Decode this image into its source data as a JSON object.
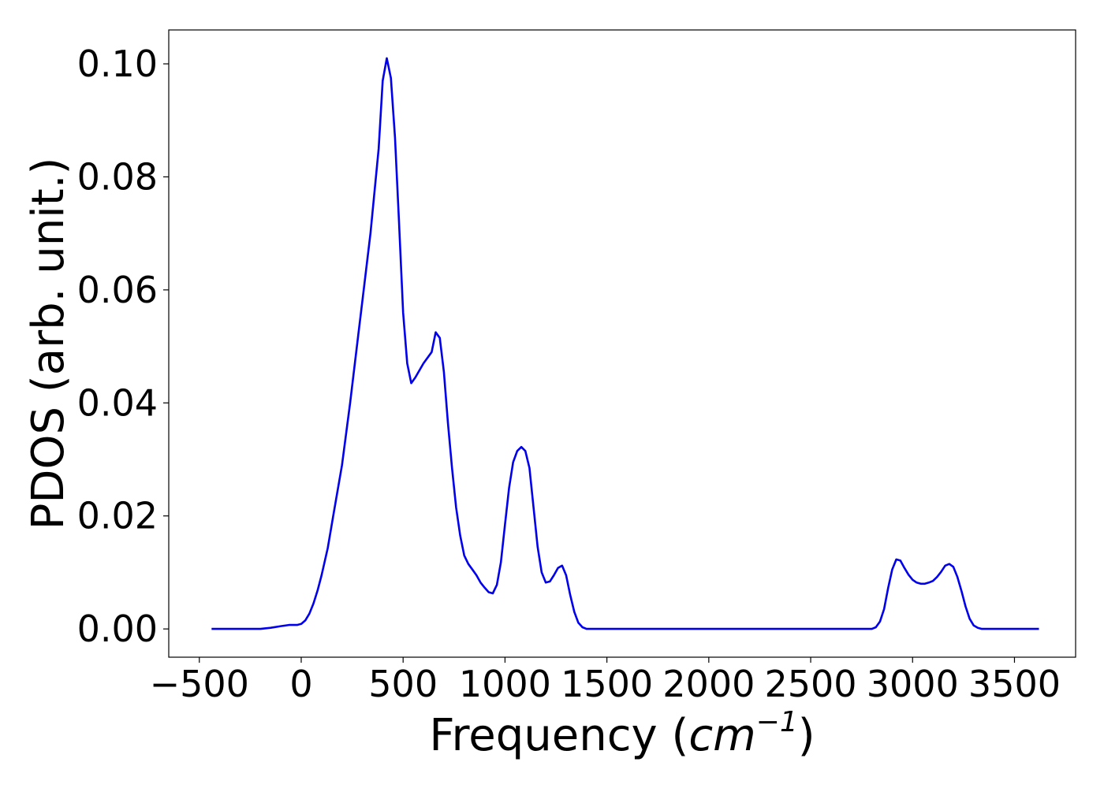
{
  "chart_data": {
    "type": "line",
    "title": "",
    "xlabel": "Frequency (",
    "xlabel_math_base": "cm",
    "xlabel_math_sup": "−1",
    "xlabel_close": ")",
    "ylabel": "PDOS (arb. unit.)",
    "xlim": [
      -650,
      3800
    ],
    "ylim": [
      -0.005,
      0.106
    ],
    "x_ticks": [
      -500,
      0,
      500,
      1000,
      1500,
      2000,
      2500,
      3000,
      3500
    ],
    "x_tick_labels": [
      "−500",
      "0",
      "500",
      "1000",
      "1500",
      "2000",
      "2500",
      "3000",
      "3500"
    ],
    "y_ticks": [
      0.0,
      0.02,
      0.04,
      0.06,
      0.08,
      0.1
    ],
    "y_tick_labels": [
      "0.00",
      "0.02",
      "0.04",
      "0.06",
      "0.08",
      "0.10"
    ],
    "grid": false,
    "series_color": "#0000ee",
    "series": [
      {
        "x": [
          -440,
          -300,
          -200,
          -150,
          -100,
          -60,
          -20,
          0,
          20,
          40,
          60,
          80,
          100,
          130,
          160,
          200,
          240,
          280,
          300,
          340,
          380,
          400,
          420,
          440,
          460,
          480,
          500,
          520,
          540,
          560,
          600,
          640,
          660,
          680,
          700,
          720,
          740,
          760,
          780,
          800,
          820,
          840,
          860,
          880,
          900,
          920,
          940,
          960,
          980,
          1000,
          1020,
          1040,
          1060,
          1080,
          1100,
          1120,
          1140,
          1160,
          1180,
          1200,
          1220,
          1240,
          1260,
          1280,
          1300,
          1320,
          1340,
          1360,
          1380,
          1400,
          1450,
          1500,
          2000,
          2500,
          2750,
          2800,
          2820,
          2840,
          2860,
          2880,
          2900,
          2920,
          2940,
          2960,
          2980,
          3000,
          3020,
          3040,
          3060,
          3080,
          3100,
          3120,
          3140,
          3160,
          3180,
          3200,
          3220,
          3240,
          3260,
          3280,
          3300,
          3320,
          3340,
          3360,
          3400,
          3500,
          3620
        ],
        "y": [
          0.0,
          0.0,
          0.0,
          0.0002,
          0.0005,
          0.0007,
          0.0007,
          0.0009,
          0.0015,
          0.0027,
          0.0045,
          0.0068,
          0.0095,
          0.0143,
          0.0206,
          0.029,
          0.04,
          0.052,
          0.058,
          0.07,
          0.085,
          0.097,
          0.101,
          0.0975,
          0.087,
          0.072,
          0.056,
          0.047,
          0.0435,
          0.0445,
          0.047,
          0.049,
          0.0525,
          0.0515,
          0.0455,
          0.0365,
          0.0285,
          0.0215,
          0.0165,
          0.013,
          0.0115,
          0.0105,
          0.0095,
          0.0082,
          0.0073,
          0.0065,
          0.0063,
          0.0078,
          0.0118,
          0.0185,
          0.025,
          0.0295,
          0.0315,
          0.0322,
          0.0315,
          0.0285,
          0.0215,
          0.0145,
          0.01,
          0.0082,
          0.0084,
          0.0095,
          0.0108,
          0.0112,
          0.0095,
          0.006,
          0.003,
          0.0011,
          0.0003,
          0.0,
          0.0,
          0.0,
          0.0,
          0.0,
          0.0,
          0.0,
          0.0003,
          0.0013,
          0.0035,
          0.0072,
          0.0105,
          0.0123,
          0.0121,
          0.0108,
          0.0096,
          0.0087,
          0.0082,
          0.008,
          0.008,
          0.0082,
          0.0085,
          0.0092,
          0.0101,
          0.0112,
          0.0115,
          0.011,
          0.0092,
          0.0067,
          0.004,
          0.0018,
          0.0006,
          0.0002,
          0.0,
          0.0,
          0.0,
          0.0,
          0.0
        ]
      }
    ]
  }
}
